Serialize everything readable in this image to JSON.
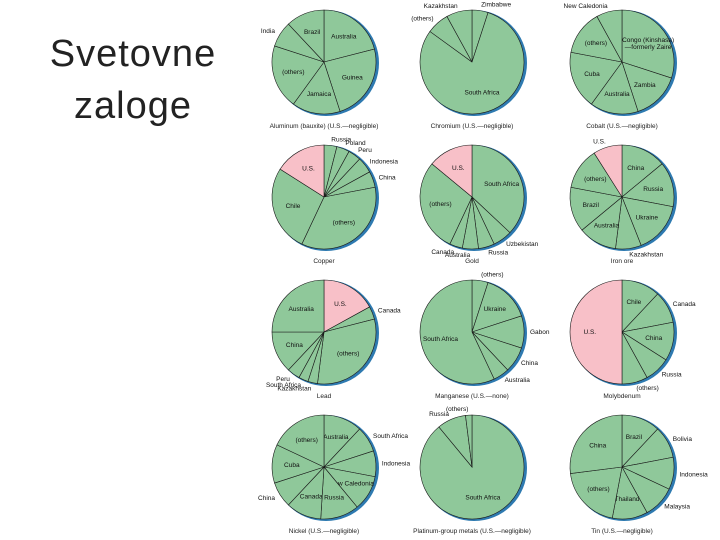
{
  "title_line1": "Svetovne",
  "title_line2": "zaloge",
  "colors": {
    "green": "#8fc89a",
    "us": "#f8c0c8",
    "rim": "#2e7ab0",
    "line": "#1a1a1a"
  },
  "chart_data": [
    {
      "type": "pie",
      "title": "Aluminum (bauxite) (U.S.—negligible)",
      "labels": [
        "Australia",
        "Guinea",
        "Jamaica",
        "(others)",
        "India",
        "Brazil"
      ],
      "values": [
        21,
        24,
        15,
        20,
        8,
        12
      ]
    },
    {
      "type": "pie",
      "title": "Chromium (U.S.—negligible)",
      "labels": [
        "Zimbabwe",
        "South Africa",
        "(others)",
        "Kazakhstan"
      ],
      "values": [
        5,
        80,
        7,
        8
      ]
    },
    {
      "type": "pie",
      "title": "Cobalt (U.S.—negligible)",
      "labels": [
        "Congo (Kinshasa) —formerly Zaire",
        "Zambia",
        "Australia",
        "Cuba",
        "(others)",
        "New Caledonia"
      ],
      "values": [
        30,
        15,
        15,
        18,
        14,
        8
      ]
    },
    {
      "type": "pie",
      "title": "Copper",
      "labels": [
        "Russia",
        "Poland",
        "Peru",
        "Indonesia",
        "China",
        "(others)",
        "Chile",
        "U.S."
      ],
      "values": [
        4,
        4,
        4,
        5,
        5,
        35,
        27,
        16
      ]
    },
    {
      "type": "pie",
      "title": "Gold",
      "labels": [
        "South Africa",
        "Uzbekistan",
        "Russia",
        "Australia",
        "Canada",
        "(others)",
        "U.S."
      ],
      "values": [
        37,
        6,
        5,
        5,
        4,
        29,
        14
      ]
    },
    {
      "type": "pie",
      "title": "Iron ore",
      "labels": [
        "China",
        "Russia",
        "Ukraine",
        "Kazakhstan",
        "Australia",
        "Brazil",
        "(others)",
        "U.S."
      ],
      "values": [
        14,
        14,
        16,
        8,
        12,
        14,
        13,
        9
      ]
    },
    {
      "type": "pie",
      "title": "Lead",
      "labels": [
        "U.S.",
        "Canada",
        "(others)",
        "Kazakhstan",
        "South Africa",
        "Peru",
        "China",
        "Australia"
      ],
      "values": [
        17,
        4,
        31,
        3,
        3,
        4,
        13,
        25
      ]
    },
    {
      "type": "pie",
      "title": "Manganese (U.S.—none)",
      "labels": [
        "(others)",
        "Ukraine",
        "Gabon",
        "China",
        "Australia",
        "South Africa"
      ],
      "values": [
        5,
        15,
        10,
        8,
        5,
        57
      ]
    },
    {
      "type": "pie",
      "title": "Molybdenum",
      "labels": [
        "Chile",
        "Canada",
        "China",
        "Russia",
        "(others)",
        "U.S."
      ],
      "values": [
        12,
        10,
        12,
        8,
        8,
        50
      ]
    },
    {
      "type": "pie",
      "title": "Nickel (U.S.—negligible)",
      "labels": [
        "Australia",
        "South Africa",
        "Indonesia",
        "New Caledonia",
        "Russia",
        "Canada",
        "China",
        "Cuba",
        "(others)"
      ],
      "values": [
        12,
        8,
        8,
        11,
        12,
        11,
        8,
        12,
        18
      ]
    },
    {
      "type": "pie",
      "title": "Platinum-group metals (U.S.—negligible)",
      "labels": [
        "South Africa",
        "Russia",
        "(others)"
      ],
      "values": [
        89,
        9,
        2
      ]
    },
    {
      "type": "pie",
      "title": "Tin (U.S.—negligible)",
      "labels": [
        "Brazil",
        "Bolivia",
        "Indonesia",
        "Malaysia",
        "Thailand",
        "(others)",
        "China"
      ],
      "values": [
        12,
        10,
        10,
        10,
        11,
        20,
        27
      ]
    }
  ]
}
